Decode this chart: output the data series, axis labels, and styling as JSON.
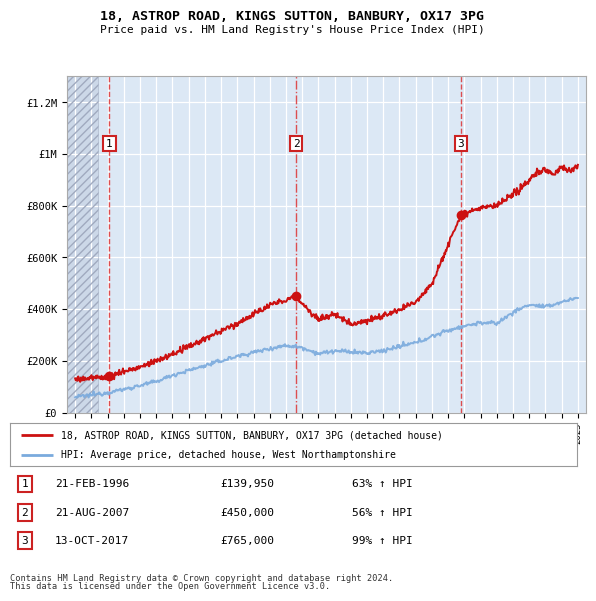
{
  "title1": "18, ASTROP ROAD, KINGS SUTTON, BANBURY, OX17 3PG",
  "title2": "Price paid vs. HM Land Registry's House Price Index (HPI)",
  "legend_line1": "18, ASTROP ROAD, KINGS SUTTON, BANBURY, OX17 3PG (detached house)",
  "legend_line2": "HPI: Average price, detached house, West Northamptonshire",
  "footer1": "Contains HM Land Registry data © Crown copyright and database right 2024.",
  "footer2": "This data is licensed under the Open Government Licence v3.0.",
  "transactions": [
    {
      "num": "1",
      "date": "21-FEB-1996",
      "price": "£139,950",
      "pct": "63% ↑ HPI",
      "year": 1996.12,
      "value": 139950,
      "linestyle": "--"
    },
    {
      "num": "2",
      "date": "21-AUG-2007",
      "price": "£450,000",
      "pct": "56% ↑ HPI",
      "year": 2007.64,
      "value": 450000,
      "linestyle": "-."
    },
    {
      "num": "3",
      "date": "13-OCT-2017",
      "price": "£765,000",
      "pct": "99% ↑ HPI",
      "year": 2017.78,
      "value": 765000,
      "linestyle": "--"
    }
  ],
  "hpi_color": "#7aaadd",
  "price_color": "#cc1111",
  "dashed_line_color": "#dd3333",
  "background_plot": "#dce8f5",
  "background_hatch_fill": "#ccd8e8",
  "ylim": [
    0,
    1300000
  ],
  "xlim_start": 1993.5,
  "xlim_end": 2025.5,
  "hatch_end": 1995.4
}
